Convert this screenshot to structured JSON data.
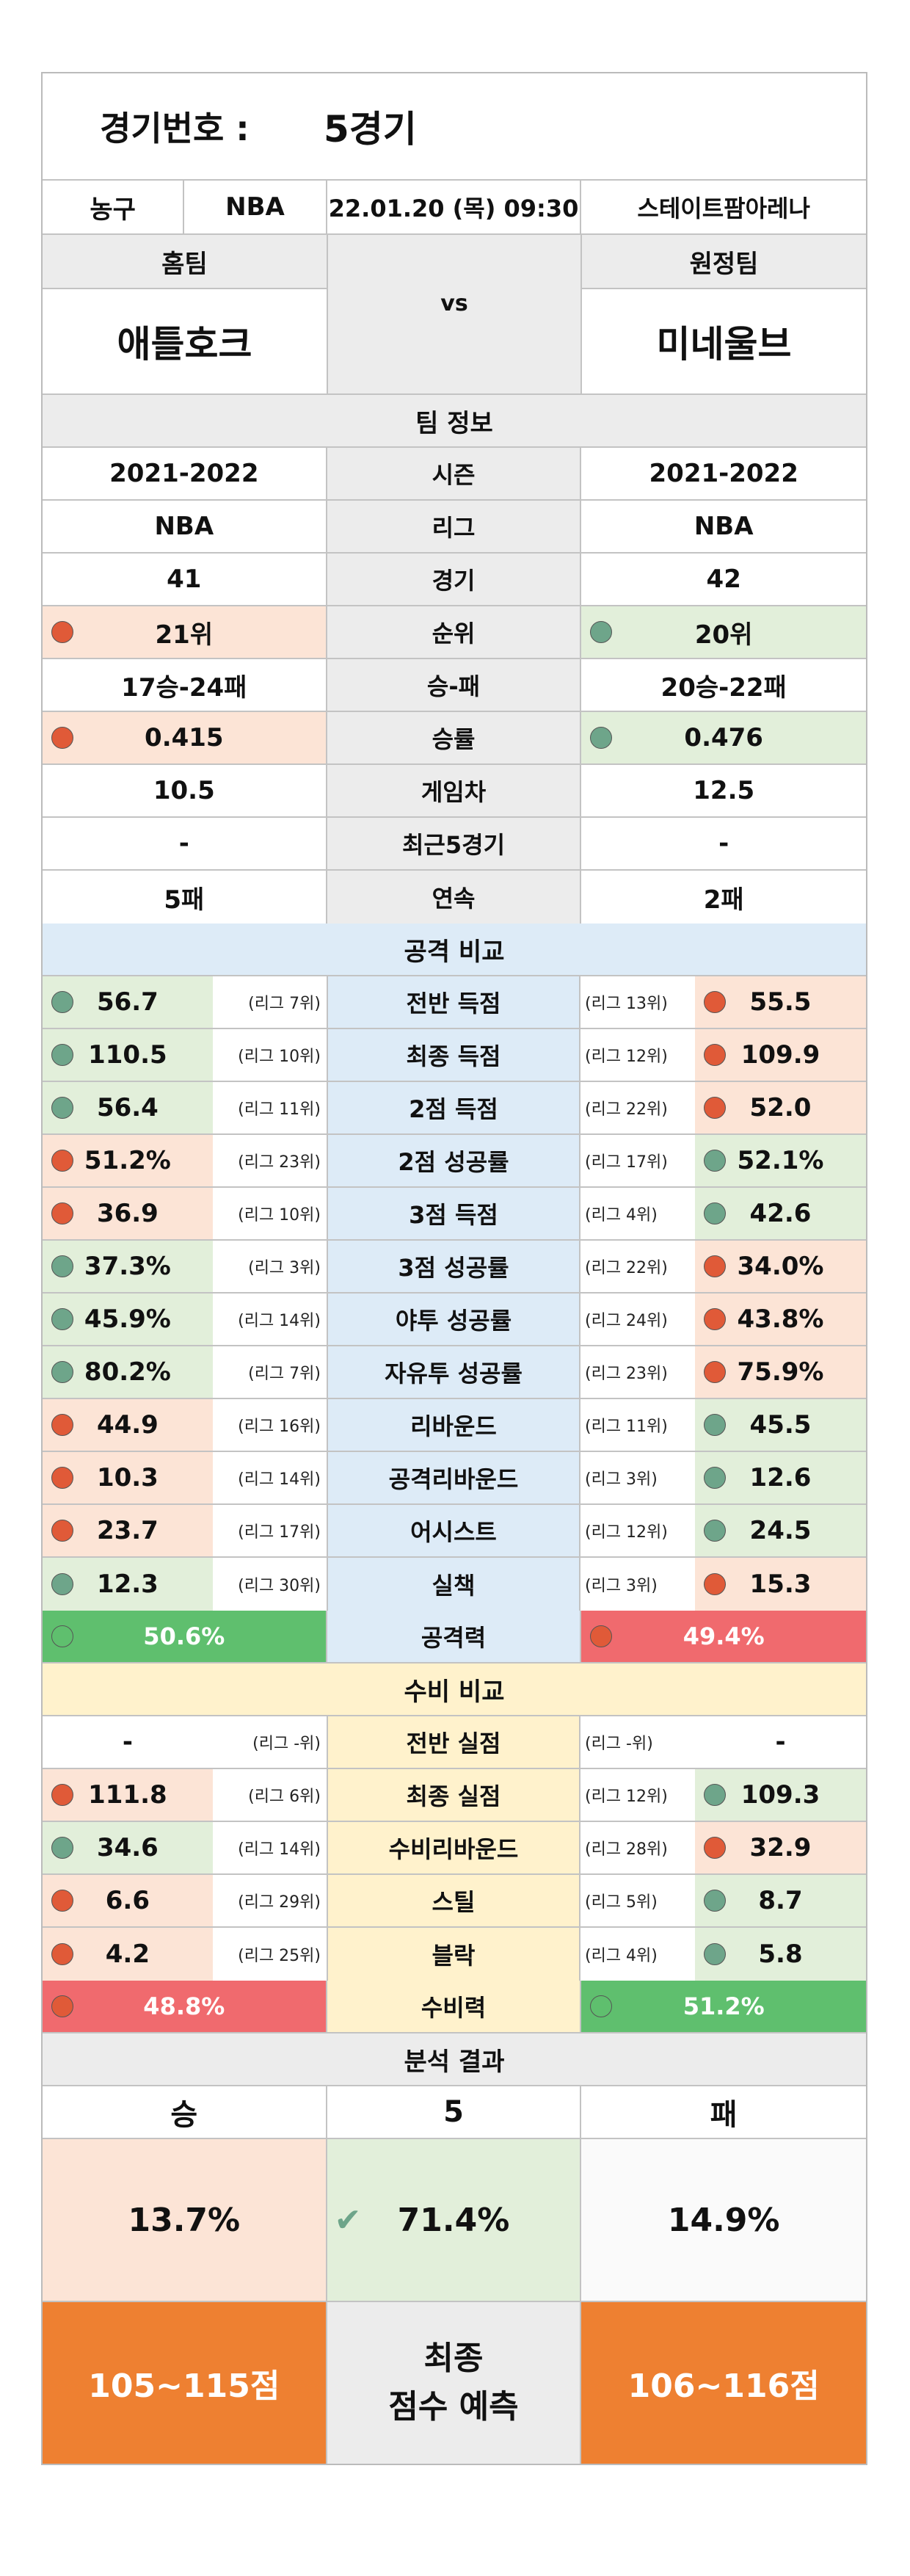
{
  "header": {
    "label": "경기번호 :",
    "value": "5경기"
  },
  "info": {
    "sport": "농구",
    "league": "NBA",
    "datetime": "22.01.20 (목) 09:30",
    "venue": "스테이트팜아레나"
  },
  "teams": {
    "home_label": "홈팀",
    "away_label": "원정팀",
    "home": "애틀호크",
    "away": "미네울브",
    "vs": "vs"
  },
  "team_info": {
    "title": "팀 정보",
    "rows": [
      {
        "label": "시즌",
        "home": "2021-2022",
        "away": "2021-2022"
      },
      {
        "label": "리그",
        "home": "NBA",
        "away": "NBA"
      },
      {
        "label": "경기",
        "home": "41",
        "away": "42"
      },
      {
        "label": "순위",
        "home": "21위",
        "away": "20위",
        "home_color": "red",
        "away_color": "green"
      },
      {
        "label": "승-패",
        "home": "17승-24패",
        "away": "20승-22패"
      },
      {
        "label": "승률",
        "home": "0.415",
        "away": "0.476",
        "home_color": "red",
        "away_color": "green"
      },
      {
        "label": "게임차",
        "home": "10.5",
        "away": "12.5"
      },
      {
        "label": "최근5경기",
        "home": "-",
        "away": "-"
      },
      {
        "label": "연속",
        "home": "5패",
        "away": "2패"
      }
    ]
  },
  "attack": {
    "title": "공격 비교",
    "rows": [
      {
        "label": "전반 득점",
        "home": "56.7",
        "home_rank": "(리그 7위)",
        "home_color": "green",
        "away": "55.5",
        "away_rank": "(리그 13위)",
        "away_color": "red"
      },
      {
        "label": "최종 득점",
        "home": "110.5",
        "home_rank": "(리그 10위)",
        "home_color": "green",
        "away": "109.9",
        "away_rank": "(리그 12위)",
        "away_color": "red"
      },
      {
        "label": "2점 득점",
        "home": "56.4",
        "home_rank": "(리그 11위)",
        "home_color": "green",
        "away": "52.0",
        "away_rank": "(리그 22위)",
        "away_color": "red"
      },
      {
        "label": "2점 성공률",
        "home": "51.2%",
        "home_rank": "(리그 23위)",
        "home_color": "red",
        "away": "52.1%",
        "away_rank": "(리그 17위)",
        "away_color": "green"
      },
      {
        "label": "3점 득점",
        "home": "36.9",
        "home_rank": "(리그 10위)",
        "home_color": "red",
        "away": "42.6",
        "away_rank": "(리그 4위)",
        "away_color": "green"
      },
      {
        "label": "3점 성공률",
        "home": "37.3%",
        "home_rank": "(리그 3위)",
        "home_color": "green",
        "away": "34.0%",
        "away_rank": "(리그 22위)",
        "away_color": "red"
      },
      {
        "label": "야투 성공률",
        "home": "45.9%",
        "home_rank": "(리그 14위)",
        "home_color": "green",
        "away": "43.8%",
        "away_rank": "(리그 24위)",
        "away_color": "red"
      },
      {
        "label": "자유투 성공률",
        "home": "80.2%",
        "home_rank": "(리그 7위)",
        "home_color": "green",
        "away": "75.9%",
        "away_rank": "(리그 23위)",
        "away_color": "red"
      },
      {
        "label": "리바운드",
        "home": "44.9",
        "home_rank": "(리그 16위)",
        "home_color": "red",
        "away": "45.5",
        "away_rank": "(리그 11위)",
        "away_color": "green"
      },
      {
        "label": "공격리바운드",
        "home": "10.3",
        "home_rank": "(리그 14위)",
        "home_color": "red",
        "away": "12.6",
        "away_rank": "(리그 3위)",
        "away_color": "green"
      },
      {
        "label": "어시스트",
        "home": "23.7",
        "home_rank": "(리그 17위)",
        "home_color": "red",
        "away": "24.5",
        "away_rank": "(리그 12위)",
        "away_color": "green"
      },
      {
        "label": "실책",
        "home": "12.3",
        "home_rank": "(리그 30위)",
        "home_color": "green",
        "away": "15.3",
        "away_rank": "(리그 3위)",
        "away_color": "red"
      }
    ],
    "power_label": "공격력",
    "home_power": "50.6%",
    "away_power": "49.4%"
  },
  "defense": {
    "title": "수비 비교",
    "rows": [
      {
        "label": "전반 실점",
        "home": "-",
        "home_rank": "(리그 -위)",
        "home_color": "none",
        "away": "-",
        "away_rank": "(리그 -위)",
        "away_color": "none"
      },
      {
        "label": "최종 실점",
        "home": "111.8",
        "home_rank": "(리그 6위)",
        "home_color": "red",
        "away": "109.3",
        "away_rank": "(리그 12위)",
        "away_color": "green"
      },
      {
        "label": "수비리바운드",
        "home": "34.6",
        "home_rank": "(리그 14위)",
        "home_color": "green",
        "away": "32.9",
        "away_rank": "(리그 28위)",
        "away_color": "red"
      },
      {
        "label": "스틸",
        "home": "6.6",
        "home_rank": "(리그 29위)",
        "home_color": "red",
        "away": "8.7",
        "away_rank": "(리그 5위)",
        "away_color": "green"
      },
      {
        "label": "블락",
        "home": "4.2",
        "home_rank": "(리그 25위)",
        "home_color": "red",
        "away": "5.8",
        "away_rank": "(리그 4위)",
        "away_color": "green"
      }
    ],
    "power_label": "수비력",
    "home_power": "48.8%",
    "away_power": "51.2%"
  },
  "result": {
    "title": "분석 결과",
    "win": "승",
    "draw": "5",
    "lose": "패",
    "win_pct": "13.7%",
    "draw_pct": "71.4%",
    "lose_pct": "14.9%",
    "check": "✔",
    "home_score": "105~115점",
    "away_score": "106~116점",
    "predict_line1": "최종",
    "predict_line2": "점수 예측"
  }
}
